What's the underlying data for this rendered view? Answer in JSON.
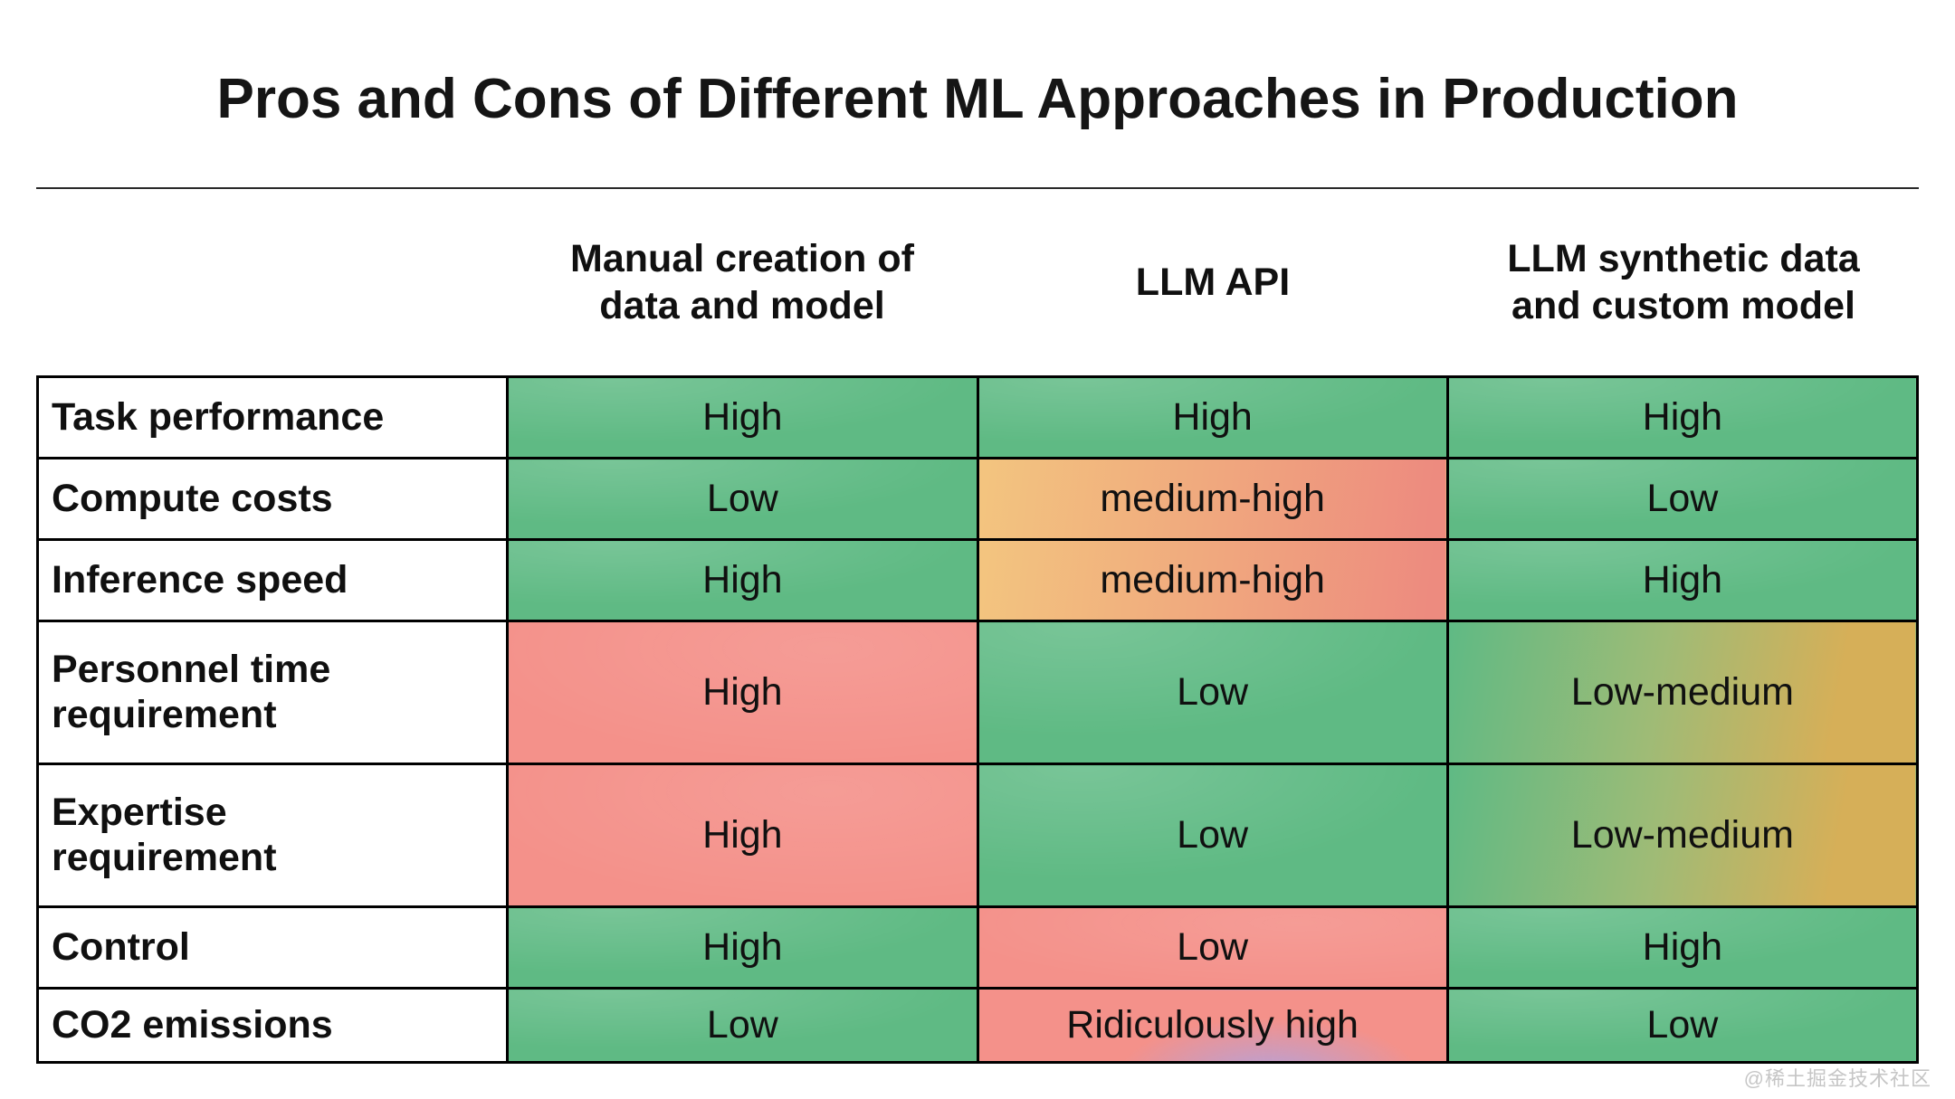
{
  "watermark": "@稀土掘金技术社区",
  "palette": {
    "green": "#5fba84",
    "red": "#f4918a",
    "amber": "#f3c57f",
    "salmon": "#ed8b7f",
    "gold": "#d6af58",
    "purple": "#b5a2da",
    "ink": "#000000",
    "watermark_gray": "#c6c6c6"
  },
  "chart_data": {
    "type": "table",
    "title": "Pros and Cons of Different ML Approaches in Production",
    "columns": [
      "Manual creation of data and model",
      "LLM API",
      "LLM synthetic data and custom model"
    ],
    "rows": [
      {
        "label": "Task performance",
        "values": [
          "High",
          "High",
          "High"
        ],
        "tones": [
          "green",
          "green",
          "green"
        ]
      },
      {
        "label": "Compute costs",
        "values": [
          "Low",
          "medium-high",
          "Low"
        ],
        "tones": [
          "green",
          "med-high",
          "green"
        ]
      },
      {
        "label": "Inference speed",
        "values": [
          "High",
          "medium-high",
          "High"
        ],
        "tones": [
          "green",
          "med-high",
          "green"
        ]
      },
      {
        "label": "Personnel time requirement",
        "values": [
          "High",
          "Low",
          "Low-medium"
        ],
        "tones": [
          "red",
          "green",
          "low-med"
        ]
      },
      {
        "label": "Expertise requirement",
        "values": [
          "High",
          "Low",
          "Low-medium"
        ],
        "tones": [
          "red",
          "green",
          "low-med"
        ]
      },
      {
        "label": "Control",
        "values": [
          "High",
          "Low",
          "High"
        ],
        "tones": [
          "green",
          "red",
          "green"
        ]
      },
      {
        "label": "CO2 emissions",
        "values": [
          "Low",
          "Ridiculously high",
          "Low"
        ],
        "tones": [
          "green",
          "ridiculous",
          "green"
        ]
      }
    ]
  }
}
